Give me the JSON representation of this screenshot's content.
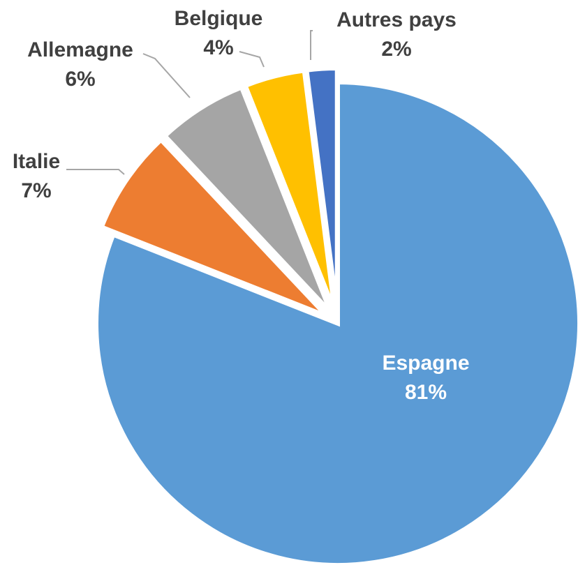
{
  "chart_data": {
    "type": "pie",
    "categories": [
      "Espagne",
      "Italie",
      "Allemagne",
      "Belgique",
      "Autres pays"
    ],
    "values": [
      81,
      7,
      6,
      4,
      2
    ],
    "value_labels": [
      "81%",
      "7%",
      "6%",
      "4%",
      "2%"
    ],
    "colors": [
      "#5b9bd5",
      "#ed7d31",
      "#a5a5a5",
      "#ffc000",
      "#4472c4"
    ]
  }
}
